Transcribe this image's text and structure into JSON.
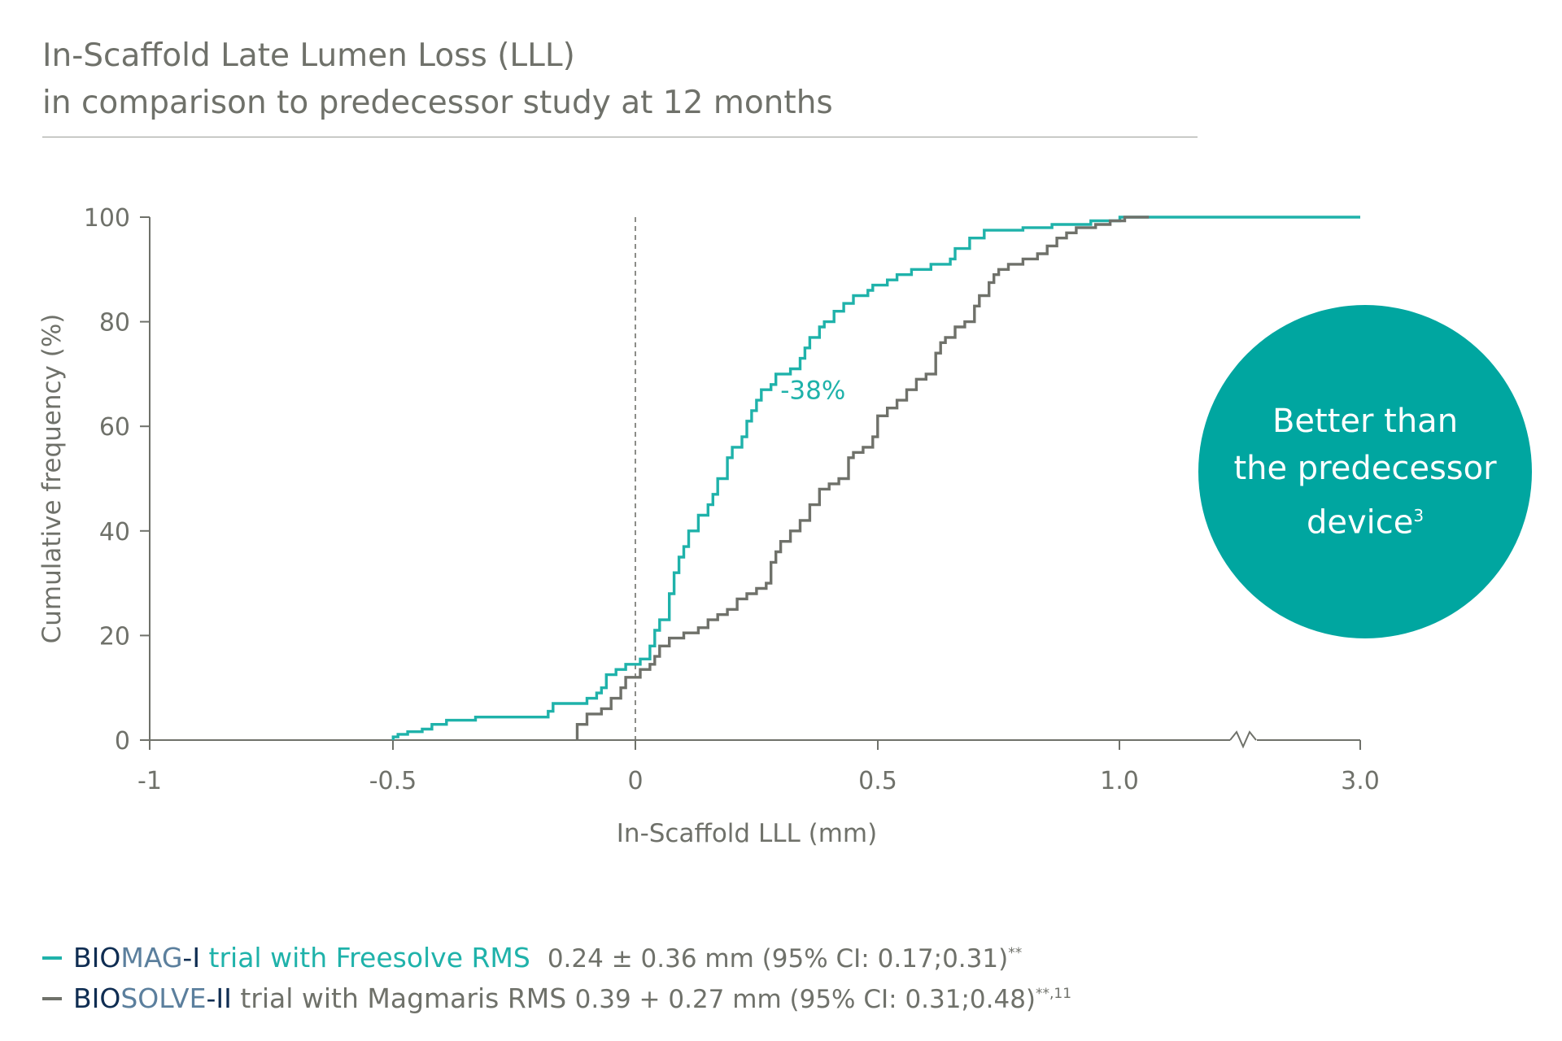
{
  "title": {
    "line1": "In-Scaffold Late Lumen Loss (LLL)",
    "line2": "in comparison to predecessor study at 12 months"
  },
  "badge": {
    "line1": "Better than",
    "line2": "the predecessor",
    "line3": "device",
    "sup": "3"
  },
  "legend": [
    {
      "color": "#1fb2aa",
      "part_dark": "BIO",
      "part_accent": "MAG",
      "part_dark2": "-I",
      "part_rest": " trial with Freesolve RMS",
      "stats": "0.24 ± 0.36 mm (95% CI: 0.17;0.31)",
      "sup": "**"
    },
    {
      "color": "#6f716a",
      "part_dark": "BIO",
      "part_accent": "SOLVE",
      "part_dark2": "-II",
      "part_rest": " trial with Magmaris RMS",
      "stats": "0.39 + 0.27 mm (95% CI: 0.31;0.48)",
      "sup": "**,11"
    }
  ],
  "colors": {
    "teal": "#1fb2aa",
    "gray": "#6f716a",
    "navy": "#0f2d52",
    "slate": "#5b7f9d",
    "axis": "#6f716a",
    "badge": "#00a6a0"
  },
  "chart_data": {
    "type": "line",
    "xlabel": "In-Scaffold LLL (mm)",
    "ylabel": "Cumulative frequency (%)",
    "x_ticks": [
      "-1",
      "-0.5",
      "0",
      "0.5",
      "1.0",
      "3.0"
    ],
    "y_ticks": [
      "0",
      "20",
      "40",
      "60",
      "80",
      "100"
    ],
    "ylim": [
      0,
      100
    ],
    "xlim": [
      -1,
      3.0
    ],
    "axis_break": "between 1.0 and 3.0",
    "reference_line": {
      "x": 0,
      "style": "dashed"
    },
    "annotation": {
      "text": "-38%",
      "x": 0.4,
      "y": 66
    },
    "series": [
      {
        "name": "BIOMAG-I trial with Freesolve RMS",
        "color": "#1fb2aa",
        "points": [
          [
            -0.5,
            0
          ],
          [
            -0.5,
            0.6
          ],
          [
            -0.49,
            0.6
          ],
          [
            -0.49,
            1.1
          ],
          [
            -0.47,
            1.1
          ],
          [
            -0.47,
            1.6
          ],
          [
            -0.44,
            1.6
          ],
          [
            -0.44,
            2.1
          ],
          [
            -0.42,
            2.1
          ],
          [
            -0.42,
            3.0
          ],
          [
            -0.39,
            3.0
          ],
          [
            -0.39,
            3.8
          ],
          [
            -0.33,
            3.8
          ],
          [
            -0.33,
            4.4
          ],
          [
            -0.18,
            4.4
          ],
          [
            -0.18,
            5.5
          ],
          [
            -0.17,
            5.5
          ],
          [
            -0.17,
            7.0
          ],
          [
            -0.1,
            7.0
          ],
          [
            -0.1,
            8.0
          ],
          [
            -0.08,
            8.0
          ],
          [
            -0.08,
            9.0
          ],
          [
            -0.07,
            9.0
          ],
          [
            -0.07,
            10.0
          ],
          [
            -0.06,
            10.0
          ],
          [
            -0.06,
            12.5
          ],
          [
            -0.04,
            12.5
          ],
          [
            -0.04,
            13.5
          ],
          [
            -0.02,
            13.5
          ],
          [
            -0.02,
            14.5
          ],
          [
            0.01,
            14.5
          ],
          [
            0.01,
            15.5
          ],
          [
            0.03,
            15.5
          ],
          [
            0.03,
            18.0
          ],
          [
            0.04,
            18.0
          ],
          [
            0.04,
            21.0
          ],
          [
            0.05,
            21.0
          ],
          [
            0.05,
            23.0
          ],
          [
            0.07,
            23.0
          ],
          [
            0.07,
            28.0
          ],
          [
            0.08,
            28.0
          ],
          [
            0.08,
            32.0
          ],
          [
            0.09,
            32.0
          ],
          [
            0.09,
            35.0
          ],
          [
            0.1,
            35.0
          ],
          [
            0.1,
            37.0
          ],
          [
            0.11,
            37.0
          ],
          [
            0.11,
            40.0
          ],
          [
            0.13,
            40.0
          ],
          [
            0.13,
            43.0
          ],
          [
            0.15,
            43.0
          ],
          [
            0.15,
            45.0
          ],
          [
            0.16,
            45.0
          ],
          [
            0.16,
            47.0
          ],
          [
            0.17,
            47.0
          ],
          [
            0.17,
            50.0
          ],
          [
            0.19,
            50.0
          ],
          [
            0.19,
            54.0
          ],
          [
            0.2,
            54.0
          ],
          [
            0.2,
            56.0
          ],
          [
            0.22,
            56.0
          ],
          [
            0.22,
            58.0
          ],
          [
            0.23,
            58.0
          ],
          [
            0.23,
            61.0
          ],
          [
            0.24,
            61.0
          ],
          [
            0.24,
            63.0
          ],
          [
            0.25,
            63.0
          ],
          [
            0.25,
            65.0
          ],
          [
            0.26,
            65.0
          ],
          [
            0.26,
            67.0
          ],
          [
            0.28,
            67.0
          ],
          [
            0.28,
            68.0
          ],
          [
            0.29,
            68.0
          ],
          [
            0.29,
            70.0
          ],
          [
            0.32,
            70.0
          ],
          [
            0.32,
            71.0
          ],
          [
            0.34,
            71.0
          ],
          [
            0.34,
            73.0
          ],
          [
            0.35,
            73.0
          ],
          [
            0.35,
            75.0
          ],
          [
            0.36,
            75.0
          ],
          [
            0.36,
            77.0
          ],
          [
            0.38,
            77.0
          ],
          [
            0.38,
            79.0
          ],
          [
            0.39,
            79.0
          ],
          [
            0.39,
            80.0
          ],
          [
            0.41,
            80.0
          ],
          [
            0.41,
            82.0
          ],
          [
            0.43,
            82.0
          ],
          [
            0.43,
            83.5
          ],
          [
            0.45,
            83.5
          ],
          [
            0.45,
            85.0
          ],
          [
            0.48,
            85.0
          ],
          [
            0.48,
            86.0
          ],
          [
            0.49,
            86.0
          ],
          [
            0.49,
            87.0
          ],
          [
            0.52,
            87.0
          ],
          [
            0.52,
            88.0
          ],
          [
            0.54,
            88.0
          ],
          [
            0.54,
            89.0
          ],
          [
            0.57,
            89.0
          ],
          [
            0.57,
            90.0
          ],
          [
            0.61,
            90.0
          ],
          [
            0.61,
            91.0
          ],
          [
            0.65,
            91.0
          ],
          [
            0.65,
            92.0
          ],
          [
            0.66,
            92.0
          ],
          [
            0.66,
            94.0
          ],
          [
            0.69,
            94.0
          ],
          [
            0.69,
            96.0
          ],
          [
            0.72,
            96.0
          ],
          [
            0.72,
            97.5
          ],
          [
            0.8,
            97.5
          ],
          [
            0.8,
            98.0
          ],
          [
            0.86,
            98.0
          ],
          [
            0.86,
            98.6
          ],
          [
            0.94,
            98.6
          ],
          [
            0.94,
            99.3
          ],
          [
            1.0,
            99.3
          ],
          [
            1.0,
            100
          ],
          [
            3.0,
            100
          ]
        ]
      },
      {
        "name": "BIOSOLVE-II trial with Magmaris RMS",
        "color": "#6f716a",
        "points": [
          [
            -0.12,
            0
          ],
          [
            -0.12,
            3.0
          ],
          [
            -0.1,
            3.0
          ],
          [
            -0.1,
            5.0
          ],
          [
            -0.07,
            5.0
          ],
          [
            -0.07,
            6.0
          ],
          [
            -0.05,
            6.0
          ],
          [
            -0.05,
            8.0
          ],
          [
            -0.03,
            8.0
          ],
          [
            -0.03,
            10.0
          ],
          [
            -0.02,
            10.0
          ],
          [
            -0.02,
            12.0
          ],
          [
            0.01,
            12.0
          ],
          [
            0.01,
            13.5
          ],
          [
            0.03,
            13.5
          ],
          [
            0.03,
            14.5
          ],
          [
            0.04,
            14.5
          ],
          [
            0.04,
            16.0
          ],
          [
            0.05,
            16.0
          ],
          [
            0.05,
            18.0
          ],
          [
            0.07,
            18.0
          ],
          [
            0.07,
            19.5
          ],
          [
            0.1,
            19.5
          ],
          [
            0.1,
            20.5
          ],
          [
            0.13,
            20.5
          ],
          [
            0.13,
            21.5
          ],
          [
            0.15,
            21.5
          ],
          [
            0.15,
            23.0
          ],
          [
            0.17,
            23.0
          ],
          [
            0.17,
            24.0
          ],
          [
            0.19,
            24.0
          ],
          [
            0.19,
            25.0
          ],
          [
            0.21,
            25.0
          ],
          [
            0.21,
            27.0
          ],
          [
            0.23,
            27.0
          ],
          [
            0.23,
            28.0
          ],
          [
            0.25,
            28.0
          ],
          [
            0.25,
            29.0
          ],
          [
            0.27,
            29.0
          ],
          [
            0.27,
            30.0
          ],
          [
            0.28,
            30.0
          ],
          [
            0.28,
            34.0
          ],
          [
            0.29,
            34.0
          ],
          [
            0.29,
            36.0
          ],
          [
            0.3,
            36.0
          ],
          [
            0.3,
            38.0
          ],
          [
            0.32,
            38.0
          ],
          [
            0.32,
            40.0
          ],
          [
            0.34,
            40.0
          ],
          [
            0.34,
            42.0
          ],
          [
            0.36,
            42.0
          ],
          [
            0.36,
            45.0
          ],
          [
            0.38,
            45.0
          ],
          [
            0.38,
            48.0
          ],
          [
            0.4,
            48.0
          ],
          [
            0.4,
            49.0
          ],
          [
            0.42,
            49.0
          ],
          [
            0.42,
            50.0
          ],
          [
            0.44,
            50.0
          ],
          [
            0.44,
            54.0
          ],
          [
            0.45,
            54.0
          ],
          [
            0.45,
            55.0
          ],
          [
            0.47,
            55.0
          ],
          [
            0.47,
            56.0
          ],
          [
            0.49,
            56.0
          ],
          [
            0.49,
            58.0
          ],
          [
            0.5,
            58.0
          ],
          [
            0.5,
            62.0
          ],
          [
            0.52,
            62.0
          ],
          [
            0.52,
            63.5
          ],
          [
            0.54,
            63.5
          ],
          [
            0.54,
            65.0
          ],
          [
            0.56,
            65.0
          ],
          [
            0.56,
            67.0
          ],
          [
            0.58,
            67.0
          ],
          [
            0.58,
            69.0
          ],
          [
            0.6,
            69.0
          ],
          [
            0.6,
            70.0
          ],
          [
            0.62,
            70.0
          ],
          [
            0.62,
            74.0
          ],
          [
            0.63,
            74.0
          ],
          [
            0.63,
            76.0
          ],
          [
            0.64,
            76.0
          ],
          [
            0.64,
            77.0
          ],
          [
            0.66,
            77.0
          ],
          [
            0.66,
            79.0
          ],
          [
            0.68,
            79.0
          ],
          [
            0.68,
            80.0
          ],
          [
            0.7,
            80.0
          ],
          [
            0.7,
            83.0
          ],
          [
            0.71,
            83.0
          ],
          [
            0.71,
            85.0
          ],
          [
            0.73,
            85.0
          ],
          [
            0.73,
            87.5
          ],
          [
            0.74,
            87.5
          ],
          [
            0.74,
            89.0
          ],
          [
            0.75,
            89.0
          ],
          [
            0.75,
            90.0
          ],
          [
            0.77,
            90.0
          ],
          [
            0.77,
            91.0
          ],
          [
            0.8,
            91.0
          ],
          [
            0.8,
            92.0
          ],
          [
            0.83,
            92.0
          ],
          [
            0.83,
            93.0
          ],
          [
            0.85,
            93.0
          ],
          [
            0.85,
            94.5
          ],
          [
            0.87,
            94.5
          ],
          [
            0.87,
            96.0
          ],
          [
            0.89,
            96.0
          ],
          [
            0.89,
            97.0
          ],
          [
            0.91,
            97.0
          ],
          [
            0.91,
            98.0
          ],
          [
            0.95,
            98.0
          ],
          [
            0.95,
            98.6
          ],
          [
            0.98,
            98.6
          ],
          [
            0.98,
            99.3
          ],
          [
            1.01,
            99.3
          ],
          [
            1.01,
            100
          ],
          [
            1.06,
            100
          ]
        ]
      }
    ]
  }
}
